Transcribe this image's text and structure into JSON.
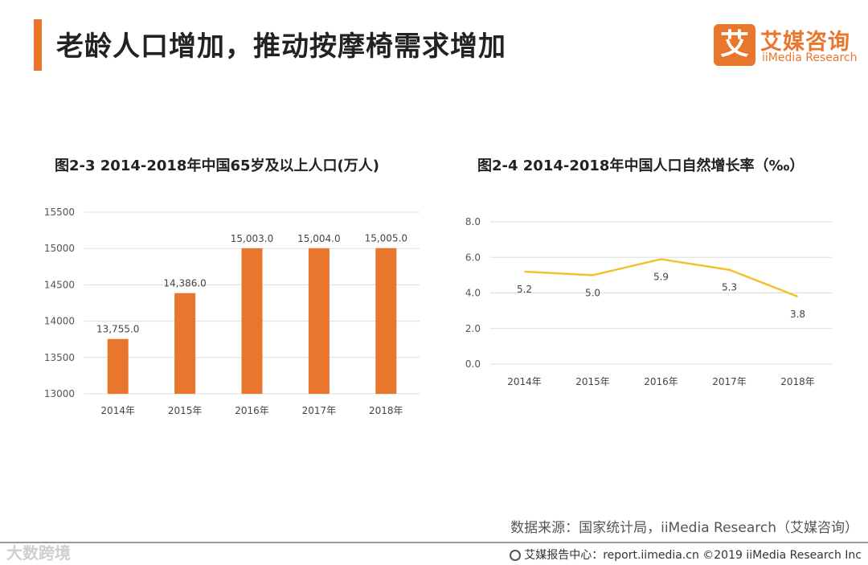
{
  "header": {
    "title": "老龄人口增加，推动按摩椅需求增加"
  },
  "logo": {
    "mark": "艾",
    "name_cn": "艾媒咨询",
    "name_en": "iiMedia Research"
  },
  "source": "数据来源：国家统计局，iiMedia Research（艾媒咨询）",
  "footer": {
    "text": "艾媒报告中心：report.iimedia.cn ©2019  iiMedia Research  Inc"
  },
  "watermark": "大数跨境",
  "colors": {
    "accent": "#e8762d",
    "bar": "#e8762d",
    "line": "#f2c12e",
    "grid": "#dddddd"
  },
  "chart_data": [
    {
      "type": "bar",
      "title": "图2-3  2014-2018年中国65岁及以上人口(万人)",
      "categories": [
        "2014年",
        "2015年",
        "2016年",
        "2017年",
        "2018年"
      ],
      "values": [
        13755.0,
        14386.0,
        15003.0,
        15004.0,
        15005.0
      ],
      "data_labels": [
        "13,755.0",
        "14,386.0",
        "15,003.0",
        "15,004.0",
        "15,005.0"
      ],
      "yticks": [
        "13000",
        "13500",
        "14000",
        "14500",
        "15000",
        "15500"
      ],
      "ylim": [
        13000,
        15500
      ],
      "xlabel": "",
      "ylabel": "",
      "grid": true
    },
    {
      "type": "line",
      "title": "图2-4  2014-2018年中国人口自然增长率（‰）",
      "categories": [
        "2014年",
        "2015年",
        "2016年",
        "2017年",
        "2018年"
      ],
      "values": [
        5.2,
        5.0,
        5.9,
        5.3,
        3.8
      ],
      "data_labels": [
        "5.2",
        "5.0",
        "5.9",
        "5.3",
        "3.8"
      ],
      "yticks": [
        "0.0",
        "2.0",
        "4.0",
        "6.0",
        "8.0"
      ],
      "ylim": [
        0,
        8
      ],
      "xlabel": "",
      "ylabel": "",
      "grid": true
    }
  ]
}
